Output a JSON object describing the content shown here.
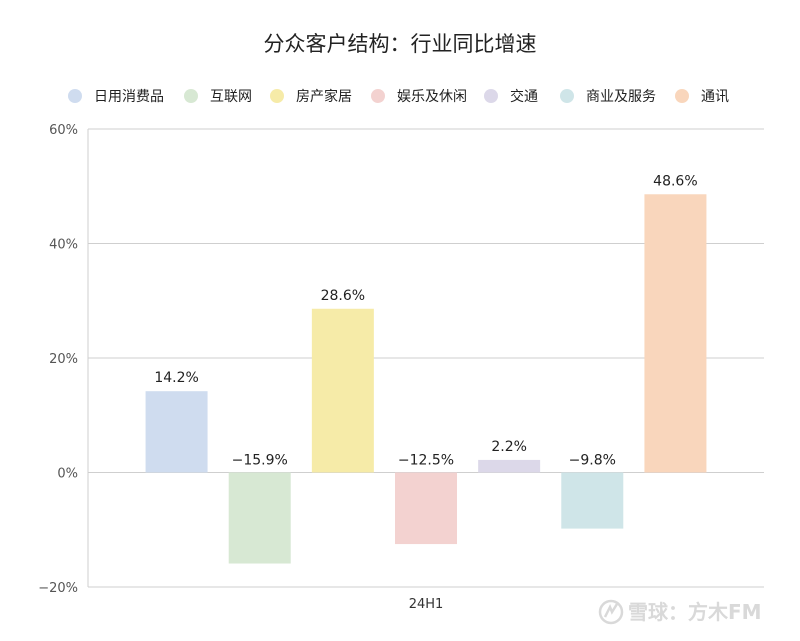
{
  "chart_data": {
    "type": "bar",
    "title": "分众客户结构：行业同比增速",
    "categories": [
      "24H1"
    ],
    "series": [
      {
        "name": "日用消费品",
        "values": [
          14.2
        ],
        "label": "14.2%",
        "color": "#cfdcef"
      },
      {
        "name": "互联网",
        "values": [
          -15.9
        ],
        "label": "−15.9%",
        "color": "#d7e8d3"
      },
      {
        "name": "房产家居",
        "values": [
          28.6
        ],
        "label": "28.6%",
        "color": "#f6eba8"
      },
      {
        "name": "娱乐及休闲",
        "values": [
          -12.5
        ],
        "label": "−12.5%",
        "color": "#f3d2d0"
      },
      {
        "name": "交通",
        "values": [
          2.2
        ],
        "label": "2.2%",
        "color": "#dcd8e9"
      },
      {
        "name": "商业及服务",
        "values": [
          -9.8
        ],
        "label": "−9.8%",
        "color": "#cfe5e8"
      },
      {
        "name": "通讯",
        "values": [
          48.6
        ],
        "label": "48.6%",
        "color": "#f9d6bc"
      }
    ],
    "ylim": [
      -20,
      60
    ],
    "yticks": [
      -20,
      0,
      20,
      40,
      60
    ],
    "ytick_labels": [
      "−20%",
      "0%",
      "20%",
      "40%",
      "60%"
    ],
    "legend_position": "top",
    "grid": true
  },
  "watermark": {
    "text": "雪球：方木FM"
  }
}
